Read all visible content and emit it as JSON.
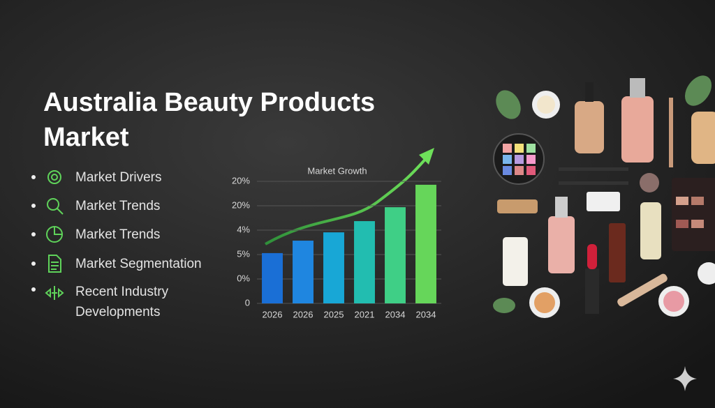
{
  "header": {
    "title": "Australia Beauty Products Market"
  },
  "list": {
    "items": [
      "Market Drivers",
      "Market Trends",
      "Market Trends",
      "Market Segmentation",
      "Recent Industry Developments"
    ]
  },
  "chart_data": {
    "type": "bar",
    "title": "Market Growth",
    "categories": [
      "2026",
      "2026",
      "2025",
      "2021",
      "2034",
      "2034"
    ],
    "values": [
      2.06,
      2.57,
      2.91,
      3.37,
      3.94,
      4.86
    ],
    "colors": [
      "#1a6fd6",
      "#1f86e0",
      "#18a7d6",
      "#22bdb0",
      "#3fcf86",
      "#66d65a"
    ],
    "ylim": [
      0,
      5
    ],
    "yticks": [
      {
        "value": 0,
        "label": "0"
      },
      {
        "value": 1,
        "label": "0%"
      },
      {
        "value": 2,
        "label": "5%"
      },
      {
        "value": 3,
        "label": "4%"
      },
      {
        "value": 4,
        "label": "20%"
      },
      {
        "value": 5,
        "label": "20%"
      }
    ],
    "grid": true
  }
}
